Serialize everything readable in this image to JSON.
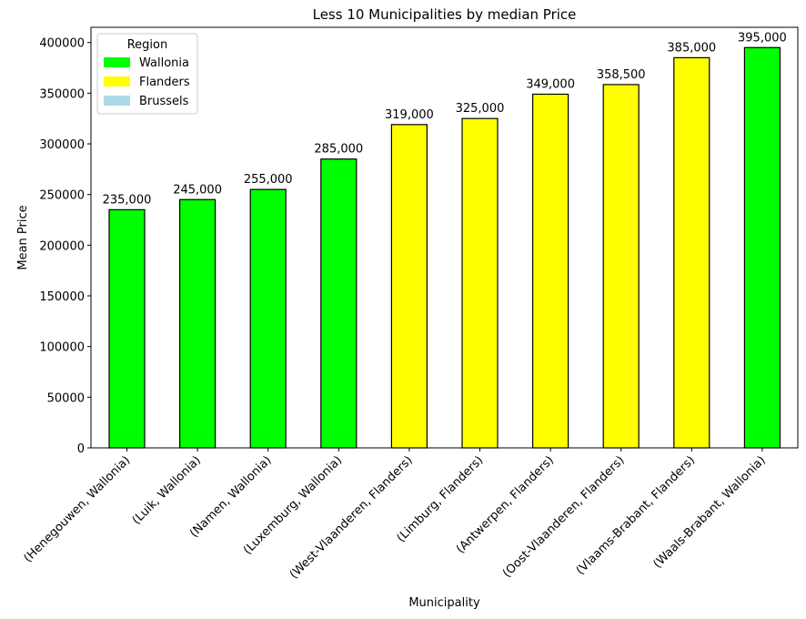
{
  "chart_data": {
    "type": "bar",
    "title": "Less 10 Municipalities by median Price",
    "xlabel": "Municipality",
    "ylabel": "Mean Price",
    "ylim": [
      0,
      415000
    ],
    "yticks": [
      "0",
      "50000",
      "100000",
      "150000",
      "200000",
      "250000",
      "300000",
      "350000",
      "400000"
    ],
    "grid": false,
    "legend": {
      "title": "Region",
      "placement": "top-left",
      "entries": [
        {
          "label": "Wallonia",
          "color": "#00ff00"
        },
        {
          "label": "Flanders",
          "color": "#ffff00"
        },
        {
          "label": "Brussels",
          "color": "#add8e6"
        }
      ]
    },
    "categories": [
      "(Henegouwen, Wallonia)",
      "(Luik, Wallonia)",
      "(Namen, Wallonia)",
      "(Luxemburg, Wallonia)",
      "(West-Vlaanderen, Flanders)",
      "(Limburg, Flanders)",
      "(Antwerpen, Flanders)",
      "(Oost-Vlaanderen, Flanders)",
      "(Vlaams-Brabant, Flanders)",
      "(Waals-Brabant, Wallonia)"
    ],
    "values": [
      235000,
      245000,
      255000,
      285000,
      319000,
      325000,
      349000,
      358500,
      385000,
      395000
    ],
    "value_labels": [
      "235,000",
      "245,000",
      "255,000",
      "285,000",
      "319,000",
      "325,000",
      "349,000",
      "358,500",
      "385,000",
      "395,000"
    ],
    "bar_regions": [
      "Wallonia",
      "Wallonia",
      "Wallonia",
      "Wallonia",
      "Flanders",
      "Flanders",
      "Flanders",
      "Flanders",
      "Flanders",
      "Wallonia"
    ]
  }
}
